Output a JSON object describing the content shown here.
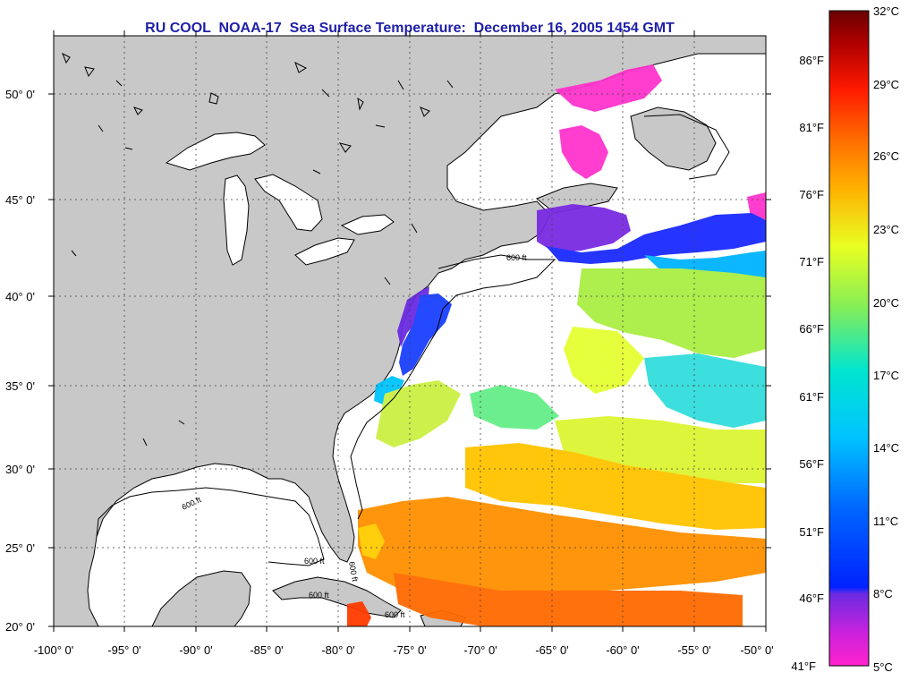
{
  "title": "RU COOL  NOAA-17  Sea Surface Temperature:  December 16, 2005 1454 GMT",
  "lat_labels": [
    "50° 0'",
    "45° 0'",
    "40° 0'",
    "35° 0'",
    "30° 0'",
    "25° 0'",
    "20° 0'"
  ],
  "lon_labels": [
    "-100° 0'",
    "-95° 0'",
    "-90° 0'",
    "-85° 0'",
    "-80° 0'",
    "-75° 0'",
    "-70° 0'",
    "-65° 0'",
    "-60° 0'",
    "-55° 0'",
    "-50° 0'"
  ],
  "isobath_labels": [
    "600 ft",
    "600 ft",
    "600 ft",
    "600 ft",
    "600 ft",
    "600 ft"
  ],
  "colorbar": {
    "celsius": [
      "32°C",
      "29°C",
      "26°C",
      "23°C",
      "20°C",
      "17°C",
      "14°C",
      "11°C",
      "8°C",
      "5°C"
    ],
    "fahrenheit": [
      "86°F",
      "81°F",
      "76°F",
      "71°F",
      "66°F",
      "61°F",
      "56°F",
      "51°F",
      "46°F",
      "41°F"
    ]
  },
  "colors": {
    "land": "#c8c8c8",
    "ocean_clouds": "#ffffff",
    "title": "#1f1fa8",
    "scale": [
      "#ff22cc",
      "#8a2be2",
      "#0022ff",
      "#00a6ff",
      "#00e5e5",
      "#66ee55",
      "#e5ff22",
      "#ffb000",
      "#ff6600",
      "#ff1a00",
      "#a00000",
      "#6a0000"
    ]
  }
}
